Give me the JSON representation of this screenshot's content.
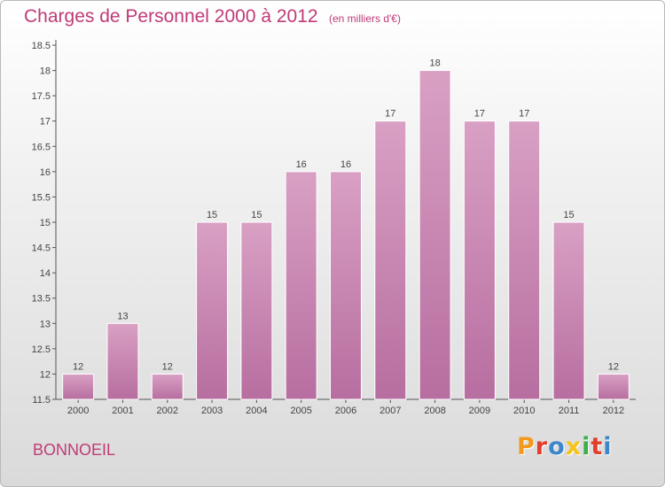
{
  "chart_data": {
    "type": "bar",
    "title": "Charges de Personnel 2000 à 2012",
    "subtitle": "(en milliers d'€)",
    "categories": [
      "2000",
      "2001",
      "2002",
      "2003",
      "2004",
      "2005",
      "2006",
      "2007",
      "2008",
      "2009",
      "2010",
      "2011",
      "2012"
    ],
    "values": [
      12,
      13,
      12,
      15,
      15,
      16,
      16,
      17,
      18,
      17,
      17,
      15,
      12
    ],
    "ylim": [
      11.5,
      18.5
    ],
    "yticks": [
      "11.5",
      "12",
      "12.5",
      "13",
      "13.5",
      "14",
      "14.5",
      "15",
      "15.5",
      "16",
      "16.5",
      "17",
      "17.5",
      "18",
      "18.5"
    ],
    "grid": false,
    "bar_color": "#d9a0c4",
    "bar_color_dark": "#b76ea0"
  },
  "place": "BONNOEIL",
  "brand": {
    "name": "Proxiti",
    "colors": [
      "#f39a1e",
      "#e23e2c",
      "#3c86c9",
      "#f6c21b",
      "#3cae4a",
      "#e23e2c",
      "#3c86c9"
    ]
  },
  "colors": {
    "accent": "#c03a78",
    "axis": "#555555"
  }
}
